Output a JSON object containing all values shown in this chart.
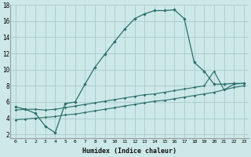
{
  "background_color": "#cce8e8",
  "grid_color": "#aacccc",
  "line_color": "#2a6e6a",
  "xlabel": "Humidex (Indice chaleur)",
  "xlim": [
    -0.5,
    23.5
  ],
  "ylim": [
    1.5,
    18.0
  ],
  "yticks": [
    2,
    4,
    6,
    8,
    10,
    12,
    14,
    16,
    18
  ],
  "xticks": [
    0,
    1,
    2,
    3,
    4,
    5,
    6,
    7,
    8,
    9,
    10,
    11,
    12,
    13,
    14,
    15,
    16,
    17,
    18,
    19,
    20,
    21,
    22,
    23
  ],
  "curve1_x": [
    0,
    1,
    2,
    3,
    4,
    5,
    6,
    7,
    8,
    9,
    10,
    11,
    12,
    13,
    14,
    15,
    16,
    17,
    18,
    19,
    20,
    21,
    22,
    23
  ],
  "curve1_y": [
    5.4,
    5.1,
    4.6,
    3.0,
    2.2,
    5.8,
    6.0,
    8.2,
    10.3,
    11.9,
    13.5,
    15.0,
    16.3,
    16.9,
    17.3,
    17.3,
    17.4,
    16.3,
    10.9,
    9.8,
    8.2,
    8.2,
    8.3,
    8.3
  ],
  "curve2_x": [
    0,
    1,
    2,
    3,
    4,
    5,
    6,
    7,
    8,
    9,
    10,
    11,
    12,
    13,
    14,
    15,
    16,
    17,
    18,
    19,
    20,
    21,
    22,
    23
  ],
  "curve2_y": [
    5.0,
    5.1,
    5.1,
    5.0,
    5.1,
    5.3,
    5.5,
    5.7,
    5.9,
    6.1,
    6.3,
    6.5,
    6.7,
    6.9,
    7.0,
    7.2,
    7.4,
    7.6,
    7.8,
    8.0,
    9.8,
    7.5,
    8.2,
    8.3
  ],
  "curve3_x": [
    0,
    1,
    2,
    3,
    4,
    5,
    6,
    7,
    8,
    9,
    10,
    11,
    12,
    13,
    14,
    15,
    16,
    17,
    18,
    19,
    20,
    21,
    22,
    23
  ],
  "curve3_y": [
    3.8,
    3.9,
    4.0,
    4.1,
    4.2,
    4.4,
    4.5,
    4.7,
    4.9,
    5.1,
    5.3,
    5.5,
    5.7,
    5.9,
    6.1,
    6.2,
    6.4,
    6.6,
    6.8,
    7.0,
    7.2,
    7.5,
    7.8,
    8.0
  ]
}
